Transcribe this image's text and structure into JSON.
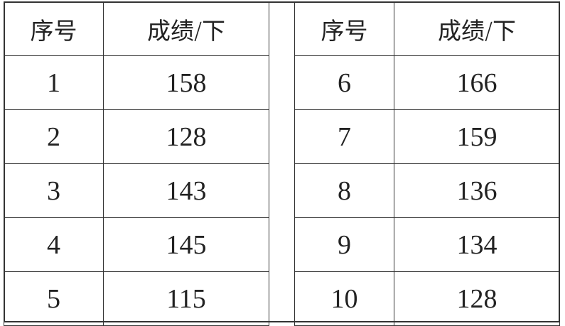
{
  "headers": [
    "序号",
    "成绩/下"
  ],
  "left": [
    {
      "no": "1",
      "score": "158"
    },
    {
      "no": "2",
      "score": "128"
    },
    {
      "no": "3",
      "score": "143"
    },
    {
      "no": "4",
      "score": "145"
    },
    {
      "no": "5",
      "score": "115"
    }
  ],
  "right": [
    {
      "no": "6",
      "score": "166"
    },
    {
      "no": "7",
      "score": "159"
    },
    {
      "no": "8",
      "score": "136"
    },
    {
      "no": "9",
      "score": "134"
    },
    {
      "no": "10",
      "score": "128"
    }
  ]
}
